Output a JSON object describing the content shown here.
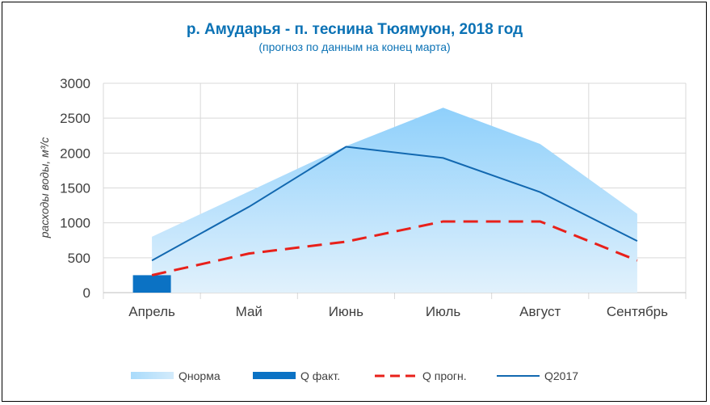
{
  "chart_data": {
    "type": "line",
    "title": "р. Амударья - п. теснина Тюямуюн, 2018 год",
    "subtitle": "(прогноз по данным на конец марта)",
    "ylabel": "расходы воды, м³/с",
    "xlabel": "",
    "categories": [
      "Апрель",
      "Май",
      "Июнь",
      "Июль",
      "Август",
      "Сентябрь"
    ],
    "ylim": [
      0,
      3000
    ],
    "yticks": [
      0,
      500,
      1000,
      1500,
      2000,
      2500,
      3000
    ],
    "grid": true,
    "legend_position": "bottom",
    "series": [
      {
        "name": "Qнорма",
        "type": "area",
        "values": [
          800,
          1450,
          2100,
          2650,
          2130,
          1130
        ],
        "color": "#9fd6f8"
      },
      {
        "name": "Q факт.",
        "type": "bar",
        "values": [
          250,
          null,
          null,
          null,
          null,
          null
        ],
        "color": "#0b72c4"
      },
      {
        "name": "Q прогн.",
        "type": "line-dashed",
        "values": [
          250,
          560,
          730,
          1020,
          1020,
          460
        ],
        "color": "#e8201a"
      },
      {
        "name": "Q2017",
        "type": "line",
        "values": [
          460,
          1230,
          2090,
          1930,
          1440,
          740
        ],
        "color": "#1268b0"
      }
    ]
  }
}
